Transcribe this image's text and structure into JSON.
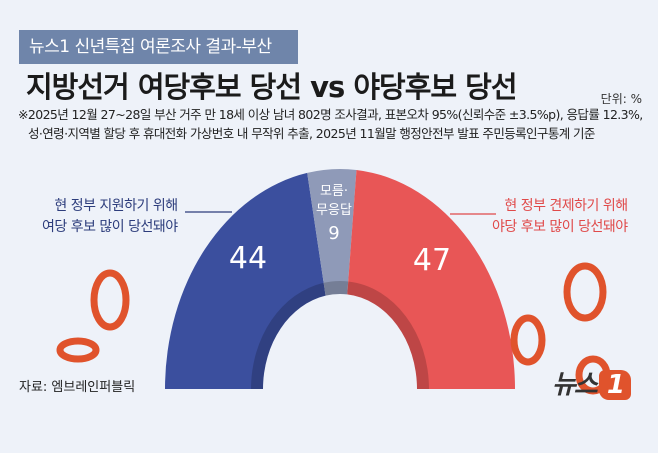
{
  "header": {
    "tag": "뉴스1 신년특집 여론조사 결과-부산",
    "title": "지방선거 여당후보 당선 vs 야당후보 당선",
    "unit": "단위: %",
    "note1": "※2025년 12월 27~28일 부산 거주 만 18세 이상 남녀 802명 조사결과, 표본오차 95%(신뢰수준 ±3.5%p), 응답률 12.3%,",
    "note2": "성·연령·지역별 할당 후 휴대전화 가상번호 내 무작위 추출,  2025년 11월말 행정안전부 발표 주민등록인구통계 기준"
  },
  "chart_data": {
    "type": "pie",
    "variant": "half-donut",
    "unit": "%",
    "categories": [
      "현 정부 지원하기 위해 여당 후보 많이 당선돼야",
      "모름·무응답",
      "현 정부 견제하기 위해 야당 후보 많이 당선돼야"
    ],
    "values": [
      44,
      9,
      47
    ],
    "value_labels": [
      "44",
      "9",
      "47"
    ],
    "colors": [
      "#3b4f9e",
      "#8f9ab8",
      "#e85656"
    ],
    "label_left": [
      "현 정부 지원하기 위해",
      "여당 후보 많이 당선돼야"
    ],
    "label_mid": [
      "모름·",
      "무응답"
    ],
    "label_right": [
      "현 정부 견제하기 위해",
      "야당 후보 많이 당선돼야"
    ]
  },
  "footer": {
    "source": "자료: 엠브레인퍼블릭",
    "logo_text": "뉴스",
    "logo_num": "1"
  }
}
